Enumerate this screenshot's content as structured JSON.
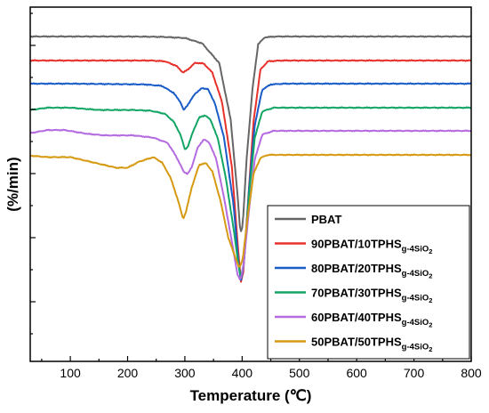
{
  "chart_data": {
    "type": "line",
    "xlabel": "Temperature (℃)",
    "ylabel": "(%/min)",
    "xlim": [
      30,
      800
    ],
    "x_ticks": [
      "100",
      "200",
      "300",
      "400",
      "500",
      "600",
      "700",
      "800"
    ],
    "y_ticks_labeled": false,
    "grid": false,
    "legend_position": "bottom-right",
    "series": [
      {
        "name": "PBAT",
        "name_base": "PBAT",
        "name_sub": "",
        "color": "#666666",
        "points": [
          [
            30,
            0
          ],
          [
            200,
            0
          ],
          [
            260,
            -0.5
          ],
          [
            300,
            -2
          ],
          [
            330,
            -9
          ],
          [
            360,
            -35
          ],
          [
            380,
            -110
          ],
          [
            392,
            -210
          ],
          [
            397,
            -260
          ],
          [
            401,
            -250
          ],
          [
            408,
            -160
          ],
          [
            418,
            -70
          ],
          [
            428,
            -10
          ],
          [
            440,
            -1
          ],
          [
            460,
            0
          ],
          [
            800,
            0
          ]
        ]
      },
      {
        "name": "90PBAT/10TPHSg-4SiO2",
        "name_base": "90PBAT/10TPHS",
        "name_sub": "g-4SiO2",
        "color": "#e8312b",
        "points": [
          [
            30,
            0
          ],
          [
            100,
            0
          ],
          [
            240,
            0
          ],
          [
            265,
            -1
          ],
          [
            285,
            -7
          ],
          [
            297,
            -16
          ],
          [
            305,
            -12
          ],
          [
            318,
            -3
          ],
          [
            333,
            -4
          ],
          [
            348,
            -16
          ],
          [
            365,
            -55
          ],
          [
            382,
            -140
          ],
          [
            393,
            -250
          ],
          [
            398,
            -292
          ],
          [
            402,
            -280
          ],
          [
            410,
            -190
          ],
          [
            420,
            -80
          ],
          [
            432,
            -12
          ],
          [
            445,
            -1
          ],
          [
            470,
            0
          ],
          [
            800,
            0
          ]
        ]
      },
      {
        "name": "80PBAT/20TPHSg-4SiO2",
        "name_base": "80PBAT/20TPHS",
        "name_sub": "g-4SiO2",
        "color": "#1a5cc8",
        "points": [
          [
            30,
            0
          ],
          [
            100,
            0
          ],
          [
            230,
            -1
          ],
          [
            260,
            -3
          ],
          [
            280,
            -12
          ],
          [
            292,
            -24
          ],
          [
            298,
            -35
          ],
          [
            305,
            -28
          ],
          [
            318,
            -13
          ],
          [
            330,
            -6
          ],
          [
            340,
            -7
          ],
          [
            352,
            -25
          ],
          [
            368,
            -70
          ],
          [
            385,
            -160
          ],
          [
            394,
            -240
          ],
          [
            398,
            -260
          ],
          [
            403,
            -240
          ],
          [
            412,
            -140
          ],
          [
            422,
            -55
          ],
          [
            435,
            -8
          ],
          [
            450,
            -1
          ],
          [
            475,
            0
          ],
          [
            800,
            0
          ]
        ]
      },
      {
        "name": "70PBAT/30TPHSg-4SiO2",
        "name_base": "70PBAT/30TPHS",
        "name_sub": "g-4SiO2",
        "color": "#12a564",
        "points": [
          [
            30,
            -3
          ],
          [
            60,
            0
          ],
          [
            100,
            0
          ],
          [
            150,
            -3
          ],
          [
            210,
            -3
          ],
          [
            240,
            -4
          ],
          [
            265,
            -8
          ],
          [
            280,
            -18
          ],
          [
            292,
            -35
          ],
          [
            300,
            -55
          ],
          [
            305,
            -52
          ],
          [
            315,
            -30
          ],
          [
            325,
            -13
          ],
          [
            335,
            -10
          ],
          [
            345,
            -16
          ],
          [
            358,
            -42
          ],
          [
            372,
            -95
          ],
          [
            386,
            -165
          ],
          [
            394,
            -210
          ],
          [
            398,
            -225
          ],
          [
            403,
            -205
          ],
          [
            412,
            -115
          ],
          [
            422,
            -40
          ],
          [
            435,
            -5
          ],
          [
            455,
            0
          ],
          [
            800,
            0
          ]
        ]
      },
      {
        "name": "60PBAT/40TPHSg-4SiO2",
        "name_base": "60PBAT/40TPHS",
        "name_sub": "g-4SiO2",
        "color": "#b56be0",
        "points": [
          [
            30,
            -3
          ],
          [
            60,
            1
          ],
          [
            90,
            1
          ],
          [
            130,
            -4
          ],
          [
            160,
            -6
          ],
          [
            210,
            -6
          ],
          [
            245,
            -9
          ],
          [
            270,
            -16
          ],
          [
            285,
            -34
          ],
          [
            298,
            -54
          ],
          [
            305,
            -57
          ],
          [
            312,
            -48
          ],
          [
            322,
            -23
          ],
          [
            333,
            -11
          ],
          [
            343,
            -16
          ],
          [
            355,
            -38
          ],
          [
            370,
            -95
          ],
          [
            384,
            -155
          ],
          [
            392,
            -190
          ],
          [
            397,
            -198
          ],
          [
            402,
            -180
          ],
          [
            412,
            -105
          ],
          [
            422,
            -38
          ],
          [
            435,
            -5
          ],
          [
            455,
            0
          ],
          [
            800,
            0
          ]
        ]
      },
      {
        "name": "50PBAT/50TPHSg-4SiO2",
        "name_base": "50PBAT/50TPHS",
        "name_sub": "g-4SiO2",
        "color": "#d69a12",
        "points": [
          [
            30,
            -1
          ],
          [
            60,
            -3
          ],
          [
            100,
            -3
          ],
          [
            140,
            -10
          ],
          [
            180,
            -17
          ],
          [
            200,
            -17
          ],
          [
            220,
            -9
          ],
          [
            245,
            -3
          ],
          [
            260,
            -10
          ],
          [
            275,
            -30
          ],
          [
            288,
            -60
          ],
          [
            297,
            -85
          ],
          [
            302,
            -75
          ],
          [
            312,
            -43
          ],
          [
            325,
            -13
          ],
          [
            337,
            -11
          ],
          [
            348,
            -22
          ],
          [
            362,
            -60
          ],
          [
            376,
            -110
          ],
          [
            388,
            -135
          ],
          [
            395,
            -150
          ],
          [
            401,
            -138
          ],
          [
            410,
            -80
          ],
          [
            420,
            -25
          ],
          [
            432,
            -4
          ],
          [
            445,
            0
          ],
          [
            800,
            0
          ]
        ]
      }
    ]
  }
}
